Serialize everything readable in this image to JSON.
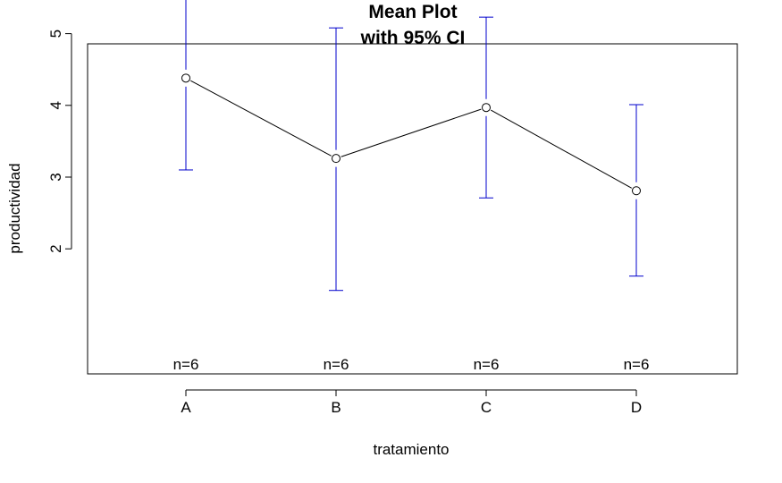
{
  "chart_data": {
    "type": "line",
    "title": "Mean Plot",
    "subtitle": "with 95% CI",
    "xlabel": "tratamiento",
    "ylabel": "productividad",
    "categories": [
      "A",
      "B",
      "C",
      "D"
    ],
    "series": [
      {
        "means": [
          4.38,
          3.26,
          3.97,
          2.81
        ],
        "ci_lower": [
          3.1,
          1.42,
          2.71,
          1.62
        ],
        "ci_upper": [
          5.68,
          5.08,
          5.23,
          4.01
        ]
      }
    ],
    "n_labels": [
      "n=6",
      "n=6",
      "n=6",
      "n=6"
    ],
    "yticks": [
      2,
      3,
      4,
      5
    ],
    "ylim": [
      1.25,
      5.85
    ],
    "grid": false,
    "legend": "none",
    "colors": {
      "line": "#000000",
      "ci": "#0000cc",
      "frame": "#000000"
    }
  }
}
